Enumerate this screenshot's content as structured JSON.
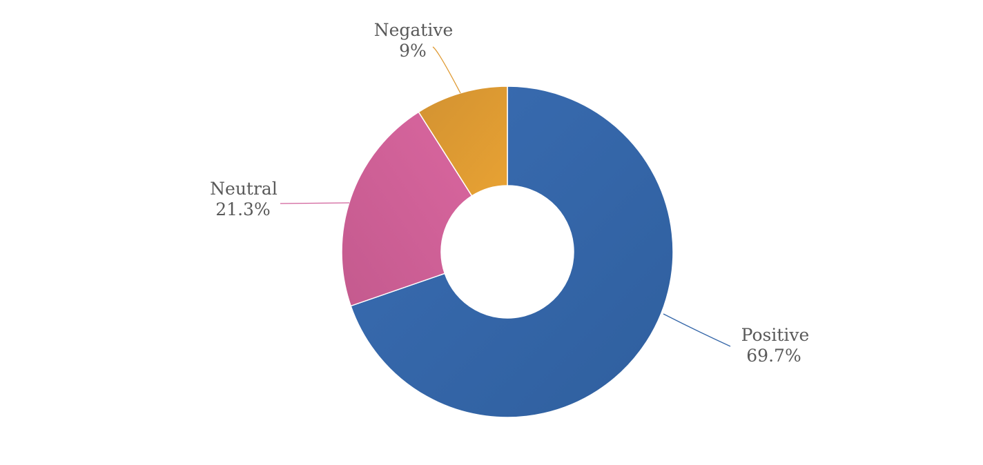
{
  "chart_data": {
    "type": "pie",
    "variant": "donut",
    "title": "",
    "legend": "none",
    "slices": [
      {
        "name": "Positive",
        "value": 69.7,
        "label": "69.7%",
        "color": "#3466a8"
      },
      {
        "name": "Neutral",
        "value": 21.3,
        "label": "21.3%",
        "color": "#d0609a"
      },
      {
        "name": "Negative",
        "value": 9.0,
        "label": "9%",
        "color": "#df9a33"
      }
    ]
  }
}
